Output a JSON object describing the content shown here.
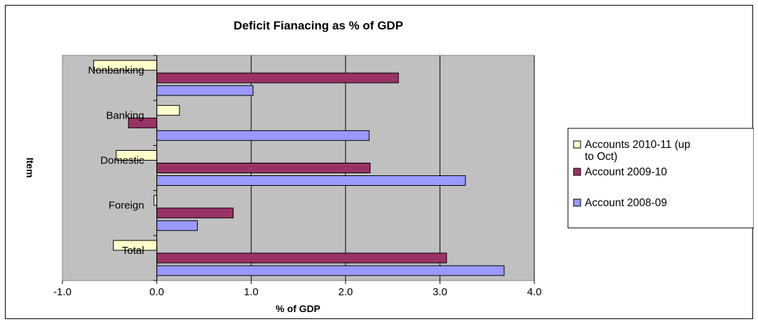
{
  "chart_data": {
    "type": "bar",
    "orientation": "horizontal",
    "title": "Deficit Fianacing as % of GDP",
    "xlabel": "% of GDP",
    "ylabel": "Item",
    "categories": [
      "Nonbanking",
      "Banking",
      "Domestic",
      "Foreign",
      "Total"
    ],
    "series": [
      {
        "name": "Accounts 2010-11 (up to Oct)",
        "legend_lines": [
          "Accounts 2010-11 (up",
          "to Oct)"
        ],
        "color": "#FFFFCC",
        "values": [
          -0.67,
          0.24,
          -0.43,
          -0.03,
          -0.46
        ]
      },
      {
        "name": "Account 2009-10",
        "legend_lines": [
          "Account 2009-10"
        ],
        "color": "#993366",
        "values": [
          2.56,
          -0.3,
          2.26,
          0.81,
          3.07
        ]
      },
      {
        "name": "Account 2008-09",
        "legend_lines": [
          "Account 2008-09"
        ],
        "color": "#9999FF",
        "values": [
          1.02,
          2.25,
          3.27,
          0.43,
          3.68
        ]
      }
    ],
    "xlim": [
      -1.0,
      4.0
    ],
    "xticks": [
      -1.0,
      0.0,
      1.0,
      2.0,
      3.0,
      4.0
    ],
    "xtick_labels": [
      "-1.0",
      "0.0",
      "1.0",
      "2.0",
      "3.0",
      "4.0"
    ],
    "plot_background": "#C0C0C0",
    "grid": true,
    "legend_position": "right"
  }
}
